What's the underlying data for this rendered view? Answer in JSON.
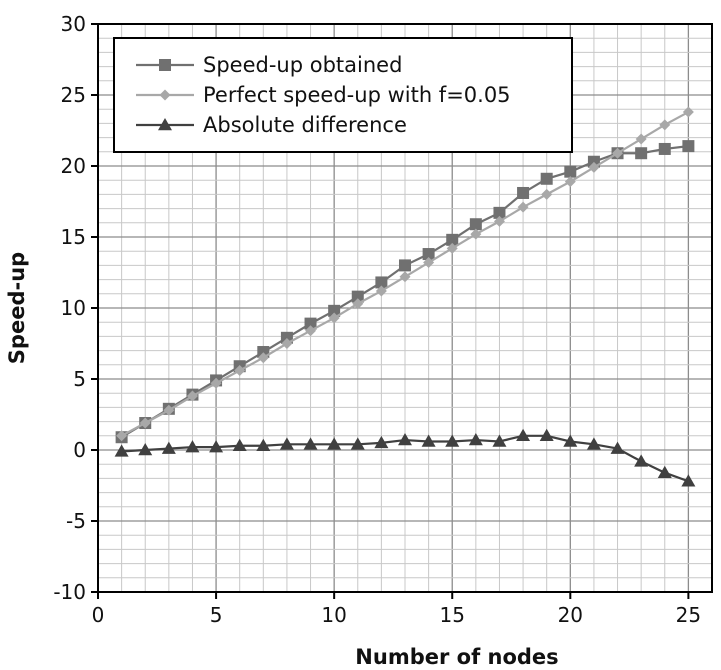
{
  "chart_data": {
    "type": "line",
    "xlabel": "Number of nodes",
    "ylabel": "Speed-up",
    "xlim": [
      0,
      26
    ],
    "ylim": [
      -10,
      30
    ],
    "x_ticks": [
      0,
      5,
      10,
      15,
      20,
      25
    ],
    "y_ticks": [
      -10,
      -5,
      0,
      5,
      10,
      15,
      20,
      25,
      30
    ],
    "grid": true,
    "legend_position": "top-left",
    "x": [
      1,
      2,
      3,
      4,
      5,
      6,
      7,
      8,
      9,
      10,
      11,
      12,
      13,
      14,
      15,
      16,
      17,
      18,
      19,
      20,
      21,
      22,
      23,
      24,
      25
    ],
    "series": [
      {
        "name": "Speed-up obtained",
        "marker": "square",
        "color": "#707070",
        "values": [
          0.9,
          1.9,
          2.9,
          3.9,
          4.9,
          5.9,
          6.9,
          7.9,
          8.9,
          9.8,
          10.8,
          11.8,
          13.0,
          13.8,
          14.8,
          15.9,
          16.7,
          18.1,
          19.1,
          19.6,
          20.3,
          20.9,
          20.9,
          21.2,
          21.4
        ]
      },
      {
        "name": "Perfect speed-up with f=0.05",
        "marker": "diamond",
        "color": "#a8a8a8",
        "values": [
          1.0,
          1.9,
          2.8,
          3.8,
          4.7,
          5.6,
          6.5,
          7.5,
          8.4,
          9.3,
          10.3,
          11.2,
          12.2,
          13.2,
          14.2,
          15.2,
          16.1,
          17.1,
          18.0,
          18.9,
          19.9,
          20.9,
          21.9,
          22.9,
          23.8
        ]
      },
      {
        "name": "Absolute difference",
        "marker": "triangle",
        "color": "#404040",
        "values": [
          -0.1,
          0.0,
          0.1,
          0.2,
          0.2,
          0.3,
          0.3,
          0.4,
          0.4,
          0.4,
          0.4,
          0.5,
          0.7,
          0.6,
          0.6,
          0.7,
          0.6,
          1.0,
          1.0,
          0.6,
          0.4,
          0.1,
          -0.8,
          -1.6,
          -2.2
        ]
      }
    ]
  }
}
